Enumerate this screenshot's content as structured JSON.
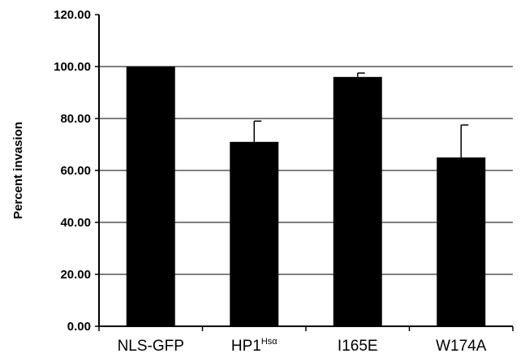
{
  "chart_data": {
    "type": "bar",
    "title": "",
    "xlabel": "",
    "ylabel": "Percent invasion",
    "ylim": [
      0,
      120
    ],
    "y_ticks": [
      "0.00",
      "20.00",
      "40.00",
      "60.00",
      "80.00",
      "100.00",
      "120.00"
    ],
    "grid": true,
    "categories": [
      {
        "base": "NLS-GFP",
        "sup": ""
      },
      {
        "base": "HP1",
        "sup": "Hsα"
      },
      {
        "base": "I165E",
        "sup": ""
      },
      {
        "base": "W174A",
        "sup": ""
      }
    ],
    "values": [
      100.0,
      71.0,
      96.0,
      65.0
    ],
    "errors": [
      0,
      8.0,
      1.5,
      12.5
    ],
    "bar_color": "#000000",
    "grid_color": "#000000"
  }
}
